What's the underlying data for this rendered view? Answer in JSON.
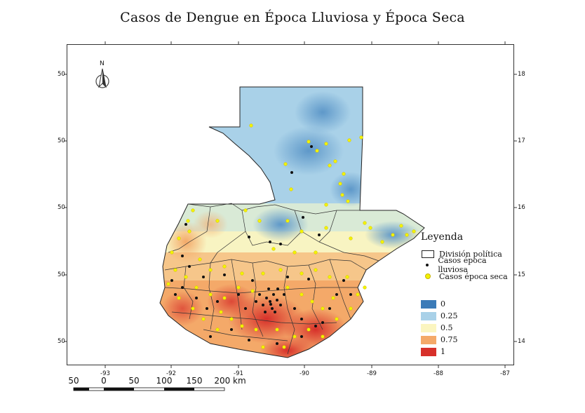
{
  "title": "Casos de Dengue en Época Lluviosa y Época Seca",
  "north_arrow": {
    "label": "N",
    "icon": "north-arrow-icon"
  },
  "latitude_ticks": [
    "18",
    "17",
    "16",
    "15",
    "14"
  ],
  "longitude_ticks": [
    "-93",
    "-92",
    "-91",
    "-90",
    "-89",
    "-88",
    "-87"
  ],
  "left_ticks": [
    "50",
    "50",
    "50",
    "50",
    "50"
  ],
  "scale_bar": {
    "labels": [
      "50",
      "0",
      "50",
      "100",
      "150",
      "200 km"
    ]
  },
  "legend": {
    "title": "Leyenda",
    "items": [
      {
        "label": "División política",
        "symbol": "polygon-outline"
      },
      {
        "label": "Casos época lluviosa",
        "symbol": "black-dot",
        "color": "#111111"
      },
      {
        "label": "Casos época seca",
        "symbol": "yellow-dot",
        "color": "#f2f200"
      }
    ]
  },
  "color_scale": {
    "items": [
      {
        "label": "0",
        "color": "#3b7bb8"
      },
      {
        "label": "0.25",
        "color": "#a9d1e8"
      },
      {
        "label": "0.5",
        "color": "#fbf5c0"
      },
      {
        "label": "0.75",
        "color": "#f4a969"
      },
      {
        "label": "1",
        "color": "#d7302a"
      }
    ]
  }
}
